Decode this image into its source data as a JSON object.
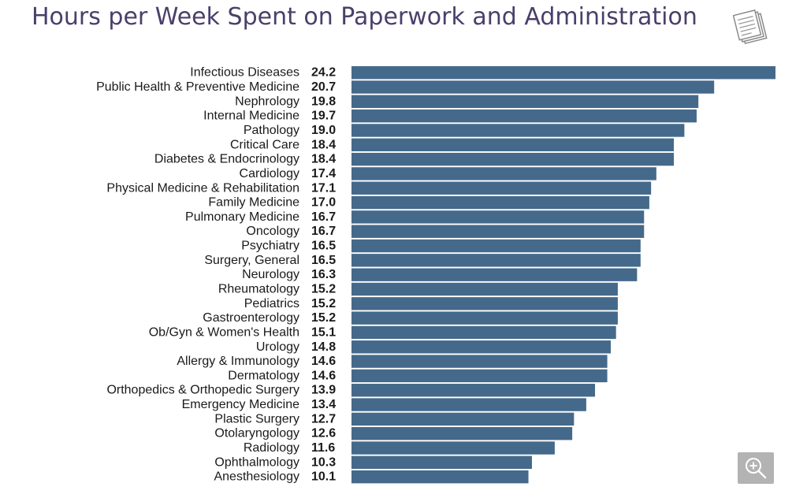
{
  "chart_data": {
    "type": "bar",
    "orientation": "horizontal",
    "title": "Hours per Week Spent on Paperwork and Administration",
    "categories": [
      "Infectious Diseases",
      "Public Health & Preventive Medicine",
      "Nephrology",
      "Internal Medicine",
      "Pathology",
      "Critical Care",
      "Diabetes & Endocrinology",
      "Cardiology",
      "Physical Medicine & Rehabilitation",
      "Family Medicine",
      "Pulmonary Medicine",
      "Oncology",
      "Psychiatry",
      "Surgery, General",
      "Neurology",
      "Rheumatology",
      "Pediatrics",
      "Gastroenterology",
      "Ob/Gyn & Women's Health",
      "Urology",
      "Allergy & Immunology",
      "Dermatology",
      "Orthopedics & Orthopedic Surgery",
      "Emergency Medicine",
      "Plastic Surgery",
      "Otolaryngology",
      "Radiology",
      "Ophthalmology",
      "Anesthesiology"
    ],
    "values": [
      24.2,
      20.7,
      19.8,
      19.7,
      19.0,
      18.4,
      18.4,
      17.4,
      17.1,
      17.0,
      16.7,
      16.7,
      16.5,
      16.5,
      16.3,
      15.2,
      15.2,
      15.2,
      15.1,
      14.8,
      14.6,
      14.6,
      13.9,
      13.4,
      12.7,
      12.6,
      11.6,
      10.3,
      10.1
    ],
    "value_labels": [
      "24.2",
      "20.7",
      "19.8",
      "19.7",
      "19.0",
      "18.4",
      "18.4",
      "17.4",
      "17.1",
      "17.0",
      "16.7",
      "16.7",
      "16.5",
      "16.5",
      "16.3",
      "15.2",
      "15.2",
      "15.2",
      "15.1",
      "14.8",
      "14.6",
      "14.6",
      "13.9",
      "13.4",
      "12.7",
      "12.6",
      "11.6",
      "10.3",
      "10.1"
    ],
    "xlim": [
      0,
      24.2
    ],
    "grid": false,
    "legend": "none",
    "bar_color": "#45698a"
  },
  "colors": {
    "title": "#4a3f6b",
    "bar": "#45698a",
    "zoom_button": "#b3b3b3"
  },
  "icons": {
    "header": "document-stack-icon",
    "zoom": "zoom-in-icon"
  }
}
